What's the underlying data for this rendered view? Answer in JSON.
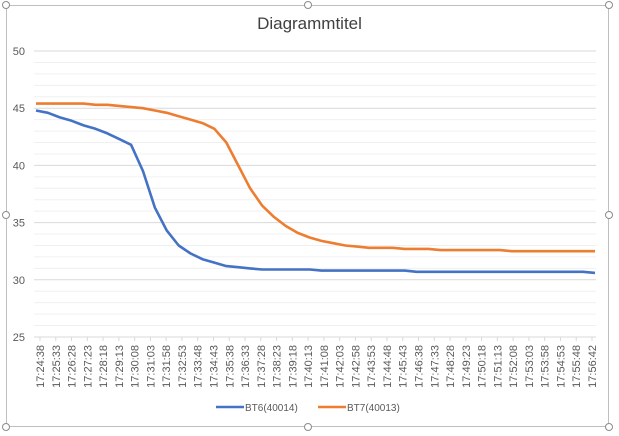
{
  "chart_data": {
    "type": "line",
    "title": "Diagrammtitel",
    "xlabel": "",
    "ylabel": "",
    "ylim": [
      25,
      50
    ],
    "y_ticks": [
      25,
      30,
      35,
      40,
      45,
      50
    ],
    "grid": true,
    "legend_position": "bottom",
    "x_ticks": [
      "17:24:38",
      "17:25:33",
      "17:26:28",
      "17:27:23",
      "17:28:18",
      "17:29:13",
      "17:30:08",
      "17:31:03",
      "17:31:58",
      "17:32:53",
      "17:33:48",
      "17:34:43",
      "17:35:38",
      "17:36:33",
      "17:37:28",
      "17:38:23",
      "17:39:18",
      "17:40:13",
      "17:41:08",
      "17:42:03",
      "17:42:58",
      "17:43:53",
      "17:44:48",
      "17:45:43",
      "17:46:38",
      "17:47:33",
      "17:48:28",
      "17:49:23",
      "17:50:18",
      "17:51:13",
      "17:52:08",
      "17:53:03",
      "17:53:58",
      "17:54:53",
      "17:55:48",
      "17:56:42"
    ],
    "series": [
      {
        "name": "BT6(40014)",
        "color": "#4472c4",
        "values": [
          44.8,
          44.6,
          44.2,
          43.9,
          43.5,
          43.2,
          42.8,
          42.3,
          41.8,
          39.5,
          36.3,
          34.3,
          33.0,
          32.3,
          31.8,
          31.5,
          31.2,
          31.1,
          31.0,
          30.9,
          30.9,
          30.9,
          30.9,
          30.9,
          30.8,
          30.8,
          30.8,
          30.8,
          30.8,
          30.8,
          30.8,
          30.8,
          30.7,
          30.7,
          30.7,
          30.7,
          30.7,
          30.7,
          30.7,
          30.7,
          30.7,
          30.7,
          30.7,
          30.7,
          30.7,
          30.7,
          30.7,
          30.6
        ]
      },
      {
        "name": "BT7(40013)",
        "color": "#ed7d31",
        "values": [
          45.4,
          45.4,
          45.4,
          45.4,
          45.4,
          45.3,
          45.3,
          45.2,
          45.1,
          45.0,
          44.8,
          44.6,
          44.3,
          44.0,
          43.7,
          43.2,
          42.0,
          40.0,
          38.0,
          36.5,
          35.5,
          34.7,
          34.1,
          33.7,
          33.4,
          33.2,
          33.0,
          32.9,
          32.8,
          32.8,
          32.8,
          32.7,
          32.7,
          32.7,
          32.6,
          32.6,
          32.6,
          32.6,
          32.6,
          32.6,
          32.5,
          32.5,
          32.5,
          32.5,
          32.5,
          32.5,
          32.5,
          32.5
        ]
      }
    ]
  }
}
